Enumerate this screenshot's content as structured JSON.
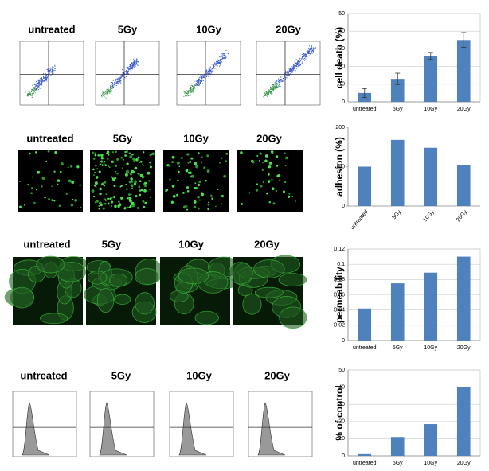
{
  "image_panels": [
    {
      "labels": [
        "untreated",
        "5Gy",
        "10Gy",
        "20Gy"
      ]
    },
    {
      "labels": [
        "untreated",
        "5Gy",
        "10Gy",
        "20Gy"
      ]
    },
    {
      "labels": [
        "untreated",
        "5Gy",
        "10Gy",
        "20Gy"
      ]
    },
    {
      "labels": [
        "untreated",
        "5Gy",
        "10Gy",
        "20Gy"
      ]
    }
  ],
  "chart_data": [
    {
      "type": "bar",
      "y_label": "cell death (%)",
      "categories": [
        "untreated",
        "5Gy",
        "10Gy",
        "20Gy"
      ],
      "values": [
        5,
        13,
        26,
        35
      ],
      "errors": [
        2.5,
        3.2,
        2,
        4.2
      ],
      "color": "#4f81bd",
      "ylim": [
        0,
        50
      ],
      "yticks": [
        0,
        10,
        20,
        30,
        40,
        50
      ],
      "grid": true,
      "rotate_categories": false
    },
    {
      "type": "bar",
      "y_label": "adhesion (%)",
      "categories": [
        "untreated",
        "5Gy",
        "10Gy",
        "20Gy"
      ],
      "values": [
        100,
        168,
        148,
        105
      ],
      "color": "#4f81bd",
      "ylim": [
        0,
        200
      ],
      "yticks": [
        0,
        100,
        200
      ],
      "grid": false,
      "rotate_categories": true
    },
    {
      "type": "bar",
      "y_label": "permeability",
      "categories": [
        "untreated",
        "5Gy",
        "10Gy",
        "20Gy"
      ],
      "values": [
        0.042,
        0.075,
        0.089,
        0.11
      ],
      "color": "#4f81bd",
      "ylim": [
        0,
        0.12
      ],
      "yticks": [
        0,
        0.02,
        0.04,
        0.06,
        0.08,
        0.1,
        0.12
      ],
      "grid": true,
      "rotate_categories": false
    },
    {
      "type": "bar",
      "y_label": "% of control",
      "categories": [
        "untreated",
        "5Gy",
        "10Gy",
        "20Gy"
      ],
      "values": [
        1,
        11,
        18.5,
        40
      ],
      "color": "#4f81bd",
      "ylim": [
        0,
        50
      ],
      "yticks": [
        0,
        10,
        20,
        30,
        40,
        50
      ],
      "grid": true,
      "rotate_categories": false
    }
  ]
}
